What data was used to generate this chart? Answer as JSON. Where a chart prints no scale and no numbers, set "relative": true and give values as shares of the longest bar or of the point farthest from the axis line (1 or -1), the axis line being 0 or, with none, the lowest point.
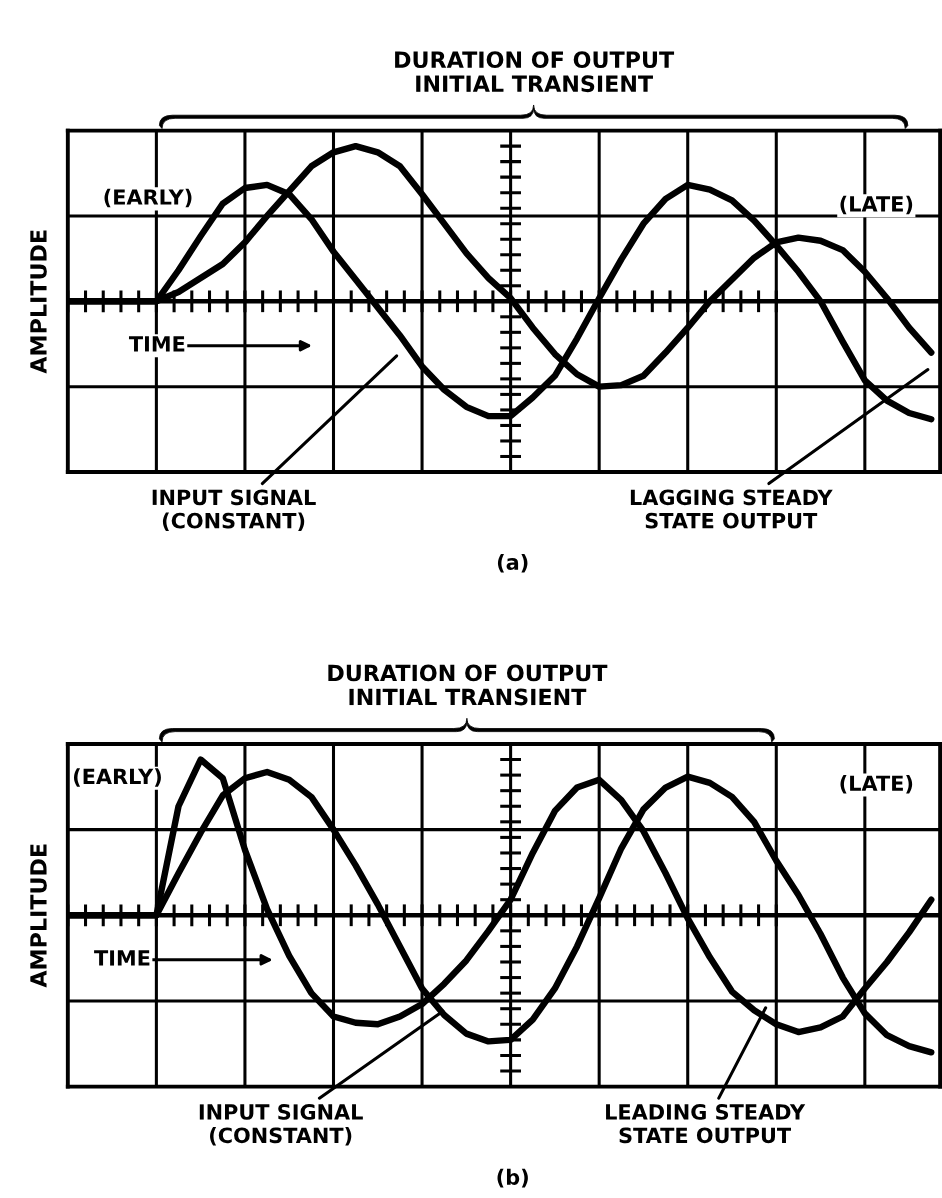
{
  "chart_data": [
    {
      "type": "line",
      "relative": true,
      "title": "DURATION OF OUTPUT\nINITIAL TRANSIENT",
      "ylabel": "AMPLITUDE",
      "grid": true,
      "line_style": "solid",
      "categories": [
        null,
        null,
        null,
        null,
        null,
        null,
        null,
        null,
        null,
        null,
        null,
        null,
        null,
        null,
        null,
        null,
        null,
        null,
        null,
        null,
        null,
        null,
        null,
        null,
        null,
        null,
        null,
        null,
        null,
        null,
        null,
        null,
        null,
        null,
        null,
        null,
        null,
        null,
        null,
        null
      ],
      "annotations": [
        "(EARLY)",
        "(LATE)",
        "TIME",
        "INPUT SIGNAL\n(CONSTANT)",
        "LAGGING STEADY\nSTATE OUTPUT",
        "(a)"
      ],
      "series": [
        {
          "color": "#000000",
          "values": [
            0,
            0,
            0,
            0,
            0,
            0.2,
            0.42,
            0.63,
            0.73,
            0.75,
            0.69,
            0.53,
            0.32,
            0.14,
            -0.04,
            -0.22,
            -0.42,
            -0.57,
            -0.68,
            -0.74,
            -0.74,
            -0.62,
            -0.48,
            -0.24,
            0.02,
            0.27,
            0.5,
            0.66,
            0.75,
            0.72,
            0.65,
            0.52,
            0.36,
            0.19,
            0,
            -0.26,
            -0.51,
            -0.64,
            -0.72,
            -0.76
          ]
        },
        {
          "color": "#000000",
          "values": [
            0,
            0,
            0,
            0,
            0,
            0.06,
            0.15,
            0.24,
            0.38,
            0.55,
            0.71,
            0.87,
            0.96,
            1.0,
            0.96,
            0.87,
            0.69,
            0.5,
            0.31,
            0.15,
            0.02,
            -0.17,
            -0.34,
            -0.47,
            -0.55,
            -0.54,
            -0.48,
            -0.33,
            -0.17,
            0,
            0.14,
            0.28,
            0.38,
            0.41,
            0.39,
            0.33,
            0.19,
            0.02,
            -0.17,
            -0.33
          ]
        }
      ]
    },
    {
      "type": "line",
      "relative": true,
      "title": "DURATION OF OUTPUT\nINITIAL TRANSIENT",
      "ylabel": "AMPLITUDE",
      "grid": true,
      "line_style": "solid",
      "categories": [
        null,
        null,
        null,
        null,
        null,
        null,
        null,
        null,
        null,
        null,
        null,
        null,
        null,
        null,
        null,
        null,
        null,
        null,
        null,
        null,
        null,
        null,
        null,
        null,
        null,
        null,
        null,
        null,
        null,
        null,
        null,
        null,
        null,
        null,
        null,
        null,
        null,
        null,
        null,
        null
      ],
      "annotations": [
        "(EARLY)",
        "(LATE)",
        "TIME",
        "INPUT SIGNAL\n(CONSTANT)",
        "LEADING STEADY\nSTATE OUTPUT",
        "(b)"
      ],
      "series": [
        {
          "color": "#000000",
          "values": [
            0,
            0,
            0,
            0,
            0,
            0.27,
            0.53,
            0.77,
            0.88,
            0.92,
            0.87,
            0.76,
            0.55,
            0.32,
            0.07,
            -0.2,
            -0.47,
            -0.64,
            -0.76,
            -0.81,
            -0.8,
            -0.67,
            -0.47,
            -0.2,
            0.11,
            0.43,
            0.68,
            0.82,
            0.89,
            0.85,
            0.76,
            0.6,
            0.35,
            0.13,
            -0.12,
            -0.4,
            -0.63,
            -0.77,
            -0.84,
            -0.88
          ]
        },
        {
          "color": "#000000",
          "values": [
            0,
            0,
            0,
            0,
            0,
            0.7,
            1.0,
            0.88,
            0.42,
            0.04,
            -0.26,
            -0.5,
            -0.65,
            -0.69,
            -0.7,
            -0.65,
            -0.57,
            -0.44,
            -0.29,
            -0.1,
            0.1,
            0.4,
            0.67,
            0.82,
            0.87,
            0.74,
            0.54,
            0.27,
            -0.02,
            -0.27,
            -0.49,
            -0.61,
            -0.7,
            -0.75,
            -0.72,
            -0.65,
            -0.47,
            -0.3,
            -0.11,
            0.1
          ]
        }
      ]
    }
  ]
}
